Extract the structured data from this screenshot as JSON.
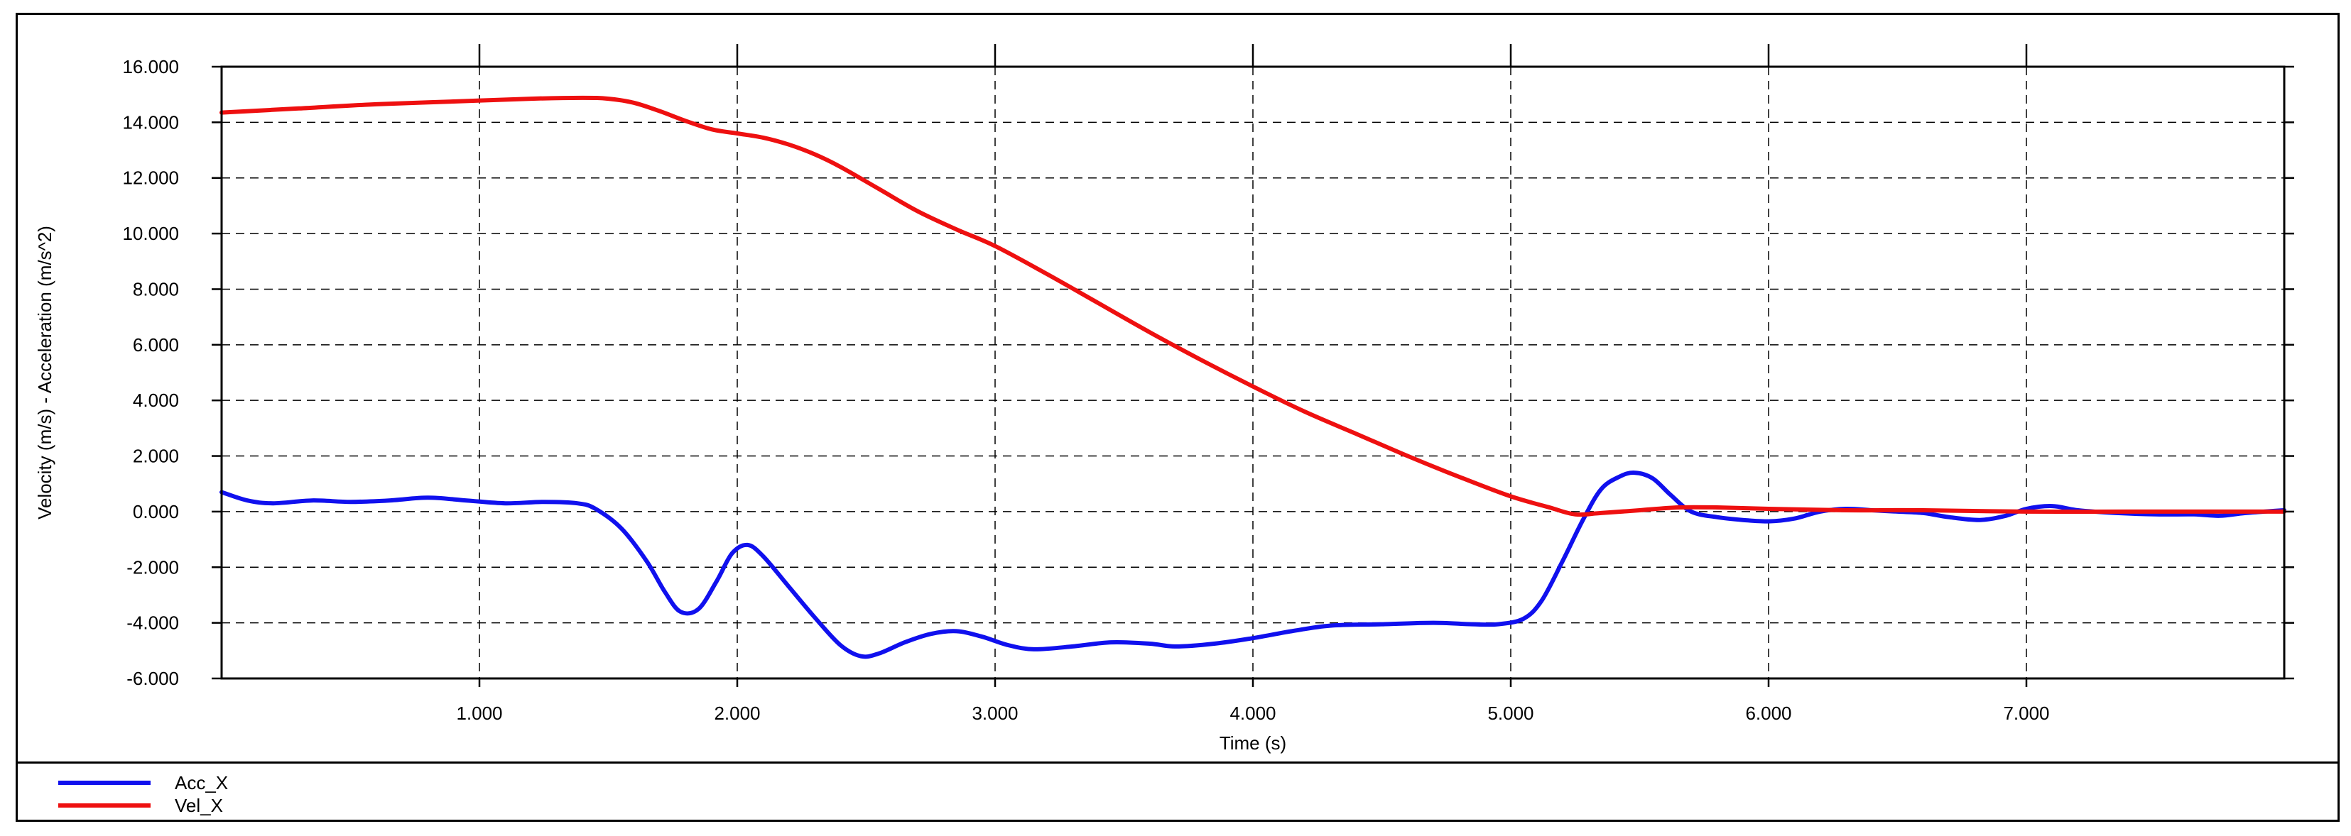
{
  "chart_data": {
    "type": "line",
    "title": "",
    "xlabel": "Time (s)",
    "ylabel": "Velocity (m/s) - Acceleration (m/s^2)",
    "xlim": [
      0.0,
      8.0
    ],
    "ylim": [
      -6.0,
      16.0
    ],
    "x_ticks": [
      1.0,
      2.0,
      3.0,
      4.0,
      5.0,
      6.0,
      7.0
    ],
    "x_tick_labels": [
      "1.000",
      "2.000",
      "3.000",
      "4.000",
      "5.000",
      "6.000",
      "7.000"
    ],
    "y_ticks": [
      -6,
      -4,
      -2,
      0,
      2,
      4,
      6,
      8,
      10,
      12,
      14,
      16
    ],
    "y_tick_labels": [
      "-6.000",
      "-4.000",
      "-2.000",
      "0.000",
      "2.000",
      "4.000",
      "6.000",
      "8.000",
      "10.000",
      "12.000",
      "14.000",
      "16.000"
    ],
    "grid": true,
    "legend_position": "bottom-left",
    "series": [
      {
        "name": "Acc_X",
        "color": "#1010ee",
        "x": [
          0.0,
          0.1,
          0.2,
          0.35,
          0.5,
          0.65,
          0.8,
          0.95,
          1.1,
          1.25,
          1.38,
          1.45,
          1.55,
          1.65,
          1.72,
          1.78,
          1.85,
          1.92,
          1.98,
          2.04,
          2.1,
          2.2,
          2.3,
          2.4,
          2.48,
          2.55,
          2.65,
          2.75,
          2.85,
          2.95,
          3.05,
          3.15,
          3.3,
          3.45,
          3.6,
          3.7,
          3.85,
          4.0,
          4.15,
          4.3,
          4.5,
          4.7,
          4.85,
          4.95,
          5.05,
          5.12,
          5.2,
          5.28,
          5.35,
          5.42,
          5.48,
          5.55,
          5.62,
          5.7,
          5.8,
          5.9,
          6.0,
          6.1,
          6.2,
          6.3,
          6.4,
          6.5,
          6.6,
          6.7,
          6.82,
          6.92,
          7.0,
          7.1,
          7.2,
          7.35,
          7.5,
          7.65,
          7.75,
          7.85,
          8.0
        ],
        "values": [
          0.7,
          0.4,
          0.3,
          0.4,
          0.35,
          0.4,
          0.5,
          0.4,
          0.3,
          0.35,
          0.3,
          0.1,
          -0.6,
          -1.8,
          -2.9,
          -3.6,
          -3.5,
          -2.5,
          -1.5,
          -1.2,
          -1.6,
          -2.7,
          -3.8,
          -4.8,
          -5.2,
          -5.1,
          -4.7,
          -4.4,
          -4.3,
          -4.5,
          -4.8,
          -4.95,
          -4.85,
          -4.7,
          -4.75,
          -4.85,
          -4.75,
          -4.55,
          -4.3,
          -4.1,
          -4.05,
          -4.0,
          -4.05,
          -4.05,
          -3.85,
          -3.2,
          -1.8,
          -0.3,
          0.8,
          1.25,
          1.4,
          1.2,
          0.6,
          0.0,
          -0.2,
          -0.3,
          -0.35,
          -0.25,
          0.0,
          0.1,
          0.05,
          0.0,
          -0.05,
          -0.2,
          -0.3,
          -0.15,
          0.1,
          0.2,
          0.05,
          -0.05,
          -0.1,
          -0.1,
          -0.15,
          -0.05,
          0.05
        ]
      },
      {
        "name": "Vel_X",
        "color": "#ee1010",
        "x": [
          0.0,
          0.3,
          0.6,
          0.9,
          1.2,
          1.4,
          1.5,
          1.6,
          1.7,
          1.8,
          1.9,
          2.0,
          2.1,
          2.2,
          2.3,
          2.4,
          2.55,
          2.7,
          2.85,
          3.0,
          3.2,
          3.4,
          3.6,
          3.8,
          4.0,
          4.2,
          4.4,
          4.6,
          4.8,
          5.0,
          5.15,
          5.25,
          5.35,
          5.5,
          5.65,
          5.8,
          6.0,
          6.3,
          6.6,
          7.0,
          7.4,
          7.8,
          8.0
        ],
        "values": [
          14.35,
          14.5,
          14.65,
          14.75,
          14.85,
          14.88,
          14.85,
          14.7,
          14.4,
          14.05,
          13.75,
          13.6,
          13.45,
          13.2,
          12.85,
          12.4,
          11.6,
          10.8,
          10.15,
          9.55,
          8.55,
          7.5,
          6.45,
          5.45,
          4.5,
          3.6,
          2.8,
          2.0,
          1.25,
          0.55,
          0.15,
          -0.1,
          -0.05,
          0.05,
          0.15,
          0.15,
          0.1,
          0.05,
          0.05,
          0.0,
          0.0,
          0.0,
          0.0
        ]
      }
    ]
  }
}
